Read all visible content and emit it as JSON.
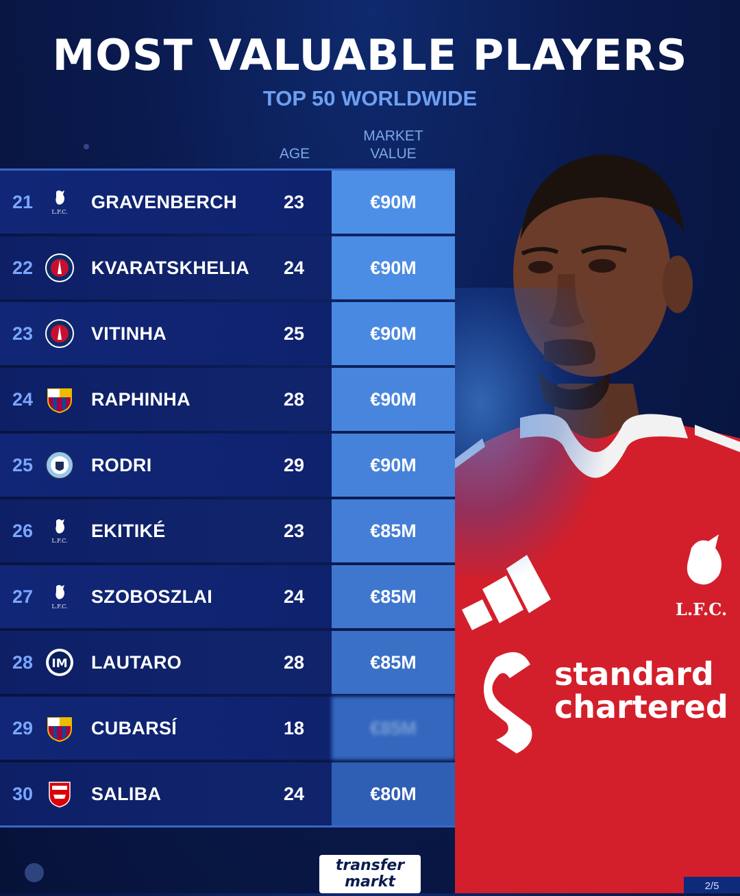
{
  "header": {
    "title": "MOST VALUABLE PLAYERS",
    "subtitle": "TOP 50 WORLDWIDE"
  },
  "columns": {
    "age": "AGE",
    "market_value_line1": "MARKET",
    "market_value_line2": "VALUE"
  },
  "rows": [
    {
      "rank": "21",
      "club_icon": "liverpool-crest-icon",
      "name": "GRAVENBERCH",
      "age": "23",
      "value": "€90M"
    },
    {
      "rank": "22",
      "club_icon": "psg-crest-icon",
      "name": "KVARATSKHELIA",
      "age": "24",
      "value": "€90M"
    },
    {
      "rank": "23",
      "club_icon": "psg-crest-icon",
      "name": "VITINHA",
      "age": "25",
      "value": "€90M"
    },
    {
      "rank": "24",
      "club_icon": "barcelona-crest-icon",
      "name": "RAPHINHA",
      "age": "28",
      "value": "€90M"
    },
    {
      "rank": "25",
      "club_icon": "man-city-crest-icon",
      "name": "RODRI",
      "age": "29",
      "value": "€90M"
    },
    {
      "rank": "26",
      "club_icon": "liverpool-crest-icon",
      "name": "EKITIKÉ",
      "age": "23",
      "value": "€85M"
    },
    {
      "rank": "27",
      "club_icon": "liverpool-crest-icon",
      "name": "SZOBOSZLAI",
      "age": "24",
      "value": "€85M"
    },
    {
      "rank": "28",
      "club_icon": "inter-crest-icon",
      "name": "LAUTARO",
      "age": "28",
      "value": "€85M"
    },
    {
      "rank": "29",
      "club_icon": "barcelona-crest-icon",
      "name": "CUBARSÍ",
      "age": "18",
      "value": "€85M"
    },
    {
      "rank": "30",
      "club_icon": "arsenal-crest-icon",
      "name": "SALIBA",
      "age": "24",
      "value": "€80M"
    }
  ],
  "value_shades": [
    "#4d8fe6",
    "#4b8ce4",
    "#4a89e2",
    "#4886de",
    "#4682da",
    "#447ed6",
    "#3f77ce",
    "#3a70c6",
    "#3468be",
    "#2f5fb4"
  ],
  "colors": {
    "background": "#0a1a4e",
    "accent": "#6ea0f2",
    "rank": "#7aa6ff",
    "jersey": "#d8202c"
  },
  "jersey": {
    "sponsor_line1": "standard",
    "sponsor_line2": "chartered",
    "club_initials": "L.F.C."
  },
  "logo": {
    "line1": "transfer",
    "line2": "markt"
  },
  "page_indicator": "2/5"
}
